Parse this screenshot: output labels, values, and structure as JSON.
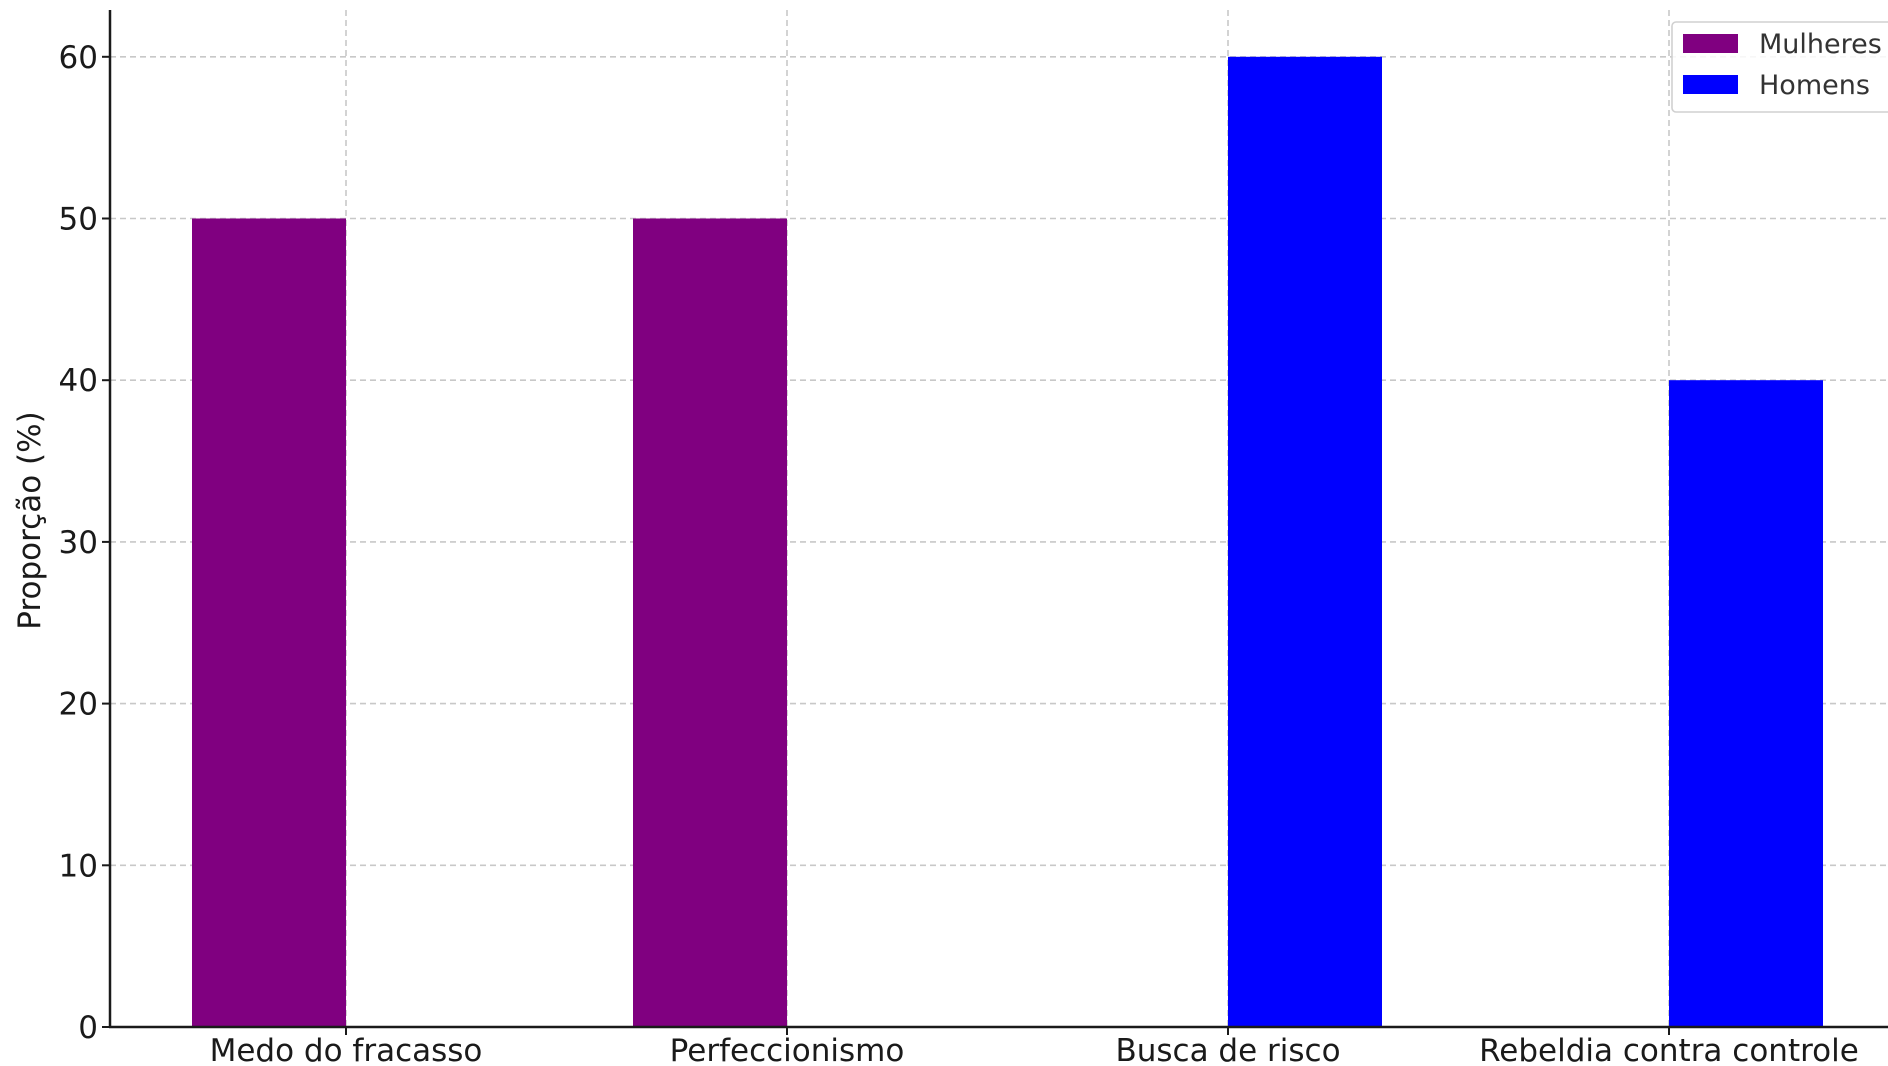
{
  "chart_data": {
    "type": "bar",
    "categories": [
      "Medo do fracasso",
      "Perfeccionismo",
      "Busca de risco",
      "Rebeldia contra controle"
    ],
    "series": [
      {
        "name": "Mulheres",
        "values": [
          50,
          50,
          0,
          0
        ],
        "color": "#800080"
      },
      {
        "name": "Homens",
        "values": [
          0,
          0,
          60,
          40
        ],
        "color": "#0000ff"
      }
    ],
    "title": "",
    "xlabel": "",
    "ylabel": "Proporção (%)",
    "ylim": [
      0,
      63
    ],
    "yticks": [
      0,
      10,
      20,
      30,
      40,
      50,
      60
    ],
    "grid": true,
    "legend_position": "top-right"
  }
}
